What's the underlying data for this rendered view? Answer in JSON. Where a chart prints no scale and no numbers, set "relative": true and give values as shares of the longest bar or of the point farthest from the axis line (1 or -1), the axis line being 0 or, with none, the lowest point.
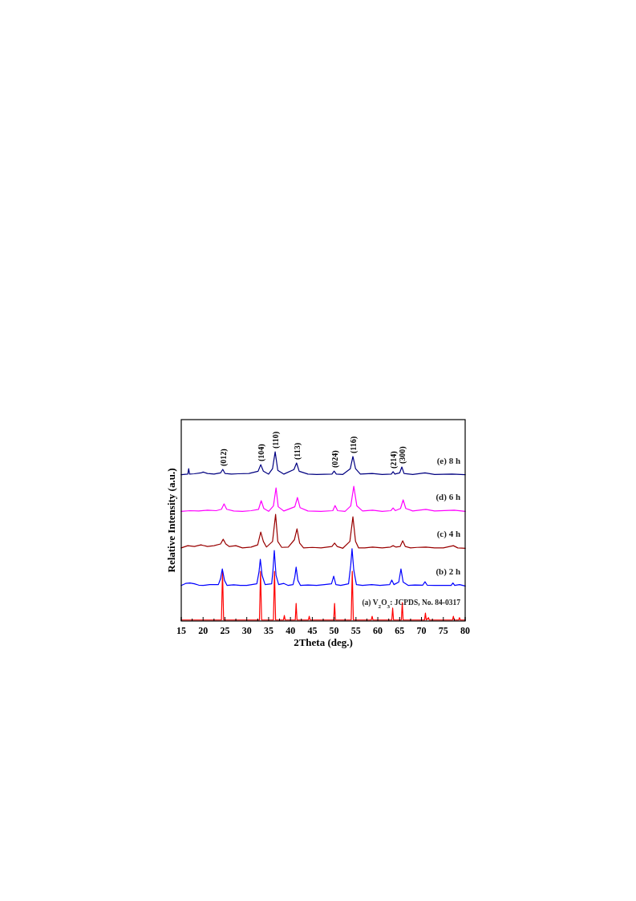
{
  "chart_data": {
    "type": "line",
    "relative": true,
    "xlabel": "2Theta (deg.)",
    "ylabel": "Relative Intensity (a.u.)",
    "xlim": [
      15,
      80
    ],
    "xticks": [
      15,
      {
        "value": 17.5,
        "label": null
      },
      20,
      {
        "value": 22.5,
        "label": null
      },
      25,
      {
        "value": 27.5,
        "label": null
      },
      30,
      {
        "value": 32.5,
        "label": null
      },
      35,
      {
        "value": 37.5,
        "label": null
      },
      40,
      {
        "value": 42.5,
        "label": null
      },
      45,
      {
        "value": 47.5,
        "label": null
      },
      50,
      {
        "value": 52.5,
        "label": null
      },
      55,
      {
        "value": 57.5,
        "label": null
      },
      60,
      {
        "value": 62.5,
        "label": null
      },
      65,
      {
        "value": 67.5,
        "label": null
      },
      70,
      {
        "value": 72.5,
        "label": null
      },
      75,
      {
        "value": 77.5,
        "label": null
      },
      80
    ],
    "marker": "none",
    "grid": false,
    "series": [
      {
        "name": "(a) V$_{2}$O$_{3}$: JCPDS, No. 84-0317",
        "color": "#ff0000",
        "x": [
          15,
          24.2,
          24.45,
          24.7,
          32.9,
          33.15,
          33.4,
          36.1,
          36.35,
          36.6,
          38.4,
          38.6,
          38.8,
          41.1,
          41.3,
          41.5,
          44.1,
          44.3,
          44.5,
          49.9,
          50.1,
          50.3,
          53.9,
          54.15,
          54.4,
          58.5,
          58.7,
          58.9,
          63.2,
          63.4,
          63.6,
          65.4,
          65.6,
          65.8,
          70.7,
          70.9,
          71.1,
          71.6,
          71.8,
          77.1,
          77.3,
          77.5,
          78.5,
          78.7,
          78.9,
          80
        ],
        "values": [
          0.005,
          0.005,
          0.294,
          0.005,
          0.005,
          0.294,
          0.005,
          0.005,
          0.294,
          0.005,
          0.005,
          0.033,
          0.005,
          0.005,
          0.104,
          0.005,
          0.005,
          0.028,
          0.005,
          0.005,
          0.104,
          0.005,
          0.005,
          0.294,
          0.005,
          0.005,
          0.028,
          0.005,
          0.005,
          0.076,
          0.005,
          0.005,
          0.109,
          0.005,
          0.005,
          0.047,
          0.005,
          0.02,
          0.005,
          0.005,
          0.028,
          0.005,
          0.005,
          0.02,
          0.005,
          0.005
        ]
      },
      {
        "name": "(b) 2 h",
        "color": "#0000ff",
        "x": [
          15,
          16,
          17,
          18,
          19,
          20,
          21.5,
          23.5,
          24.0,
          24.4,
          24.9,
          25.5,
          27,
          28.5,
          30,
          32.3,
          32.8,
          33.1,
          33.5,
          34.2,
          35.7,
          36.0,
          36.3,
          36.7,
          37.3,
          38.5,
          39.5,
          40.6,
          41.0,
          41.3,
          41.7,
          42.3,
          44,
          46,
          47.8,
          49.4,
          49.9,
          50.4,
          51.5,
          53.3,
          53.8,
          54.1,
          54.5,
          55.1,
          56.5,
          58.6,
          60.5,
          62.7,
          63.2,
          63.7,
          64.8,
          65.3,
          65.8,
          67,
          68.5,
          70.3,
          70.8,
          71.3,
          73,
          75,
          76.8,
          77.2,
          77.6,
          78.7,
          80
        ],
        "values": [
          0.21,
          0.222,
          0.225,
          0.22,
          0.212,
          0.21,
          0.215,
          0.215,
          0.25,
          0.308,
          0.24,
          0.21,
          0.214,
          0.21,
          0.21,
          0.22,
          0.29,
          0.365,
          0.27,
          0.215,
          0.22,
          0.3,
          0.417,
          0.27,
          0.215,
          0.222,
          0.21,
          0.215,
          0.26,
          0.318,
          0.24,
          0.21,
          0.213,
          0.21,
          0.215,
          0.22,
          0.265,
          0.215,
          0.21,
          0.22,
          0.33,
          0.427,
          0.3,
          0.215,
          0.21,
          0.215,
          0.21,
          0.215,
          0.242,
          0.215,
          0.23,
          0.308,
          0.23,
          0.21,
          0.213,
          0.212,
          0.232,
          0.212,
          0.21,
          0.21,
          0.21,
          0.225,
          0.21,
          0.215,
          0.207
        ]
      },
      {
        "name": "(c) 4 h",
        "color": "#990000",
        "x": [
          15,
          16.5,
          18,
          19.5,
          21,
          22.5,
          24.0,
          24.6,
          25.2,
          26,
          27.5,
          29,
          31,
          32.5,
          33.2,
          33.8,
          34.5,
          35.9,
          36.6,
          37.1,
          38,
          39.5,
          40.9,
          41.5,
          42.1,
          43,
          45,
          47,
          49.5,
          50.1,
          50.7,
          52,
          53.6,
          54.3,
          54.9,
          55.6,
          57,
          58.8,
          61,
          62.9,
          63.5,
          64.1,
          65.1,
          65.7,
          66.3,
          67.5,
          69,
          71,
          73,
          75,
          77.3,
          78.3,
          80
        ],
        "values": [
          0.432,
          0.445,
          0.44,
          0.45,
          0.44,
          0.445,
          0.455,
          0.483,
          0.455,
          0.44,
          0.445,
          0.432,
          0.437,
          0.45,
          0.526,
          0.47,
          0.437,
          0.47,
          0.63,
          0.47,
          0.435,
          0.437,
          0.48,
          0.545,
          0.46,
          0.432,
          0.435,
          0.432,
          0.44,
          0.46,
          0.44,
          0.43,
          0.47,
          0.616,
          0.47,
          0.432,
          0.432,
          0.437,
          0.432,
          0.437,
          0.445,
          0.437,
          0.44,
          0.474,
          0.44,
          0.432,
          0.435,
          0.437,
          0.432,
          0.432,
          0.445,
          0.432,
          0.43
        ]
      },
      {
        "name": "(d) 6 h",
        "color": "#ff00ff",
        "x": [
          15,
          17,
          19,
          21,
          23,
          24.2,
          24.8,
          25.4,
          27,
          29,
          31,
          32.7,
          33.3,
          33.9,
          35,
          36.1,
          36.7,
          37.2,
          38.5,
          41.0,
          41.6,
          42.2,
          44,
          47,
          49.7,
          50.2,
          50.8,
          52.5,
          53.8,
          54.5,
          55.2,
          56.5,
          58.8,
          61,
          63,
          63.5,
          64,
          65.2,
          65.8,
          66.4,
          68,
          71,
          73,
          77.5,
          80
        ],
        "values": [
          0.648,
          0.652,
          0.65,
          0.655,
          0.652,
          0.66,
          0.692,
          0.66,
          0.65,
          0.648,
          0.652,
          0.66,
          0.711,
          0.665,
          0.648,
          0.68,
          0.787,
          0.675,
          0.65,
          0.675,
          0.73,
          0.67,
          0.65,
          0.648,
          0.652,
          0.682,
          0.652,
          0.648,
          0.68,
          0.796,
          0.68,
          0.65,
          0.655,
          0.648,
          0.652,
          0.668,
          0.652,
          0.665,
          0.716,
          0.665,
          0.65,
          0.66,
          0.65,
          0.655,
          0.648
        ]
      },
      {
        "name": "(e) 8 h",
        "color": "#000080",
        "x": [
          15,
          16.5,
          16.7,
          16.9,
          18,
          19.5,
          20,
          21,
          22.5,
          24.0,
          24.5,
          25.0,
          26.5,
          28,
          30.5,
          32.6,
          33.2,
          33.8,
          35,
          35.9,
          36.5,
          37.1,
          38.5,
          40.8,
          41.4,
          42.0,
          44,
          46,
          49.5,
          50,
          50.5,
          52,
          53.7,
          54.3,
          54.9,
          56,
          58.7,
          61,
          63.1,
          63.5,
          63.9,
          65.0,
          65.5,
          66.0,
          68,
          70.8,
          73,
          77,
          80
        ],
        "values": [
          0.865,
          0.868,
          0.9,
          0.868,
          0.87,
          0.875,
          0.88,
          0.872,
          0.868,
          0.875,
          0.896,
          0.872,
          0.868,
          0.87,
          0.872,
          0.885,
          0.924,
          0.885,
          0.868,
          0.9,
          1.0,
          0.89,
          0.868,
          0.895,
          0.934,
          0.885,
          0.868,
          0.866,
          0.868,
          0.886,
          0.868,
          0.866,
          0.9,
          0.972,
          0.9,
          0.868,
          0.872,
          0.866,
          0.868,
          0.882,
          0.868,
          0.875,
          0.91,
          0.872,
          0.866,
          0.875,
          0.866,
          0.868,
          0.865
        ]
      }
    ],
    "annotations": [
      {
        "text": "(012)",
        "x": 24.5,
        "y": 0.896
      },
      {
        "text": "(104)",
        "x": 33.2,
        "y": 0.924
      },
      {
        "text": "(110)",
        "x": 36.5,
        "y": 1.0
      },
      {
        "text": "(113)",
        "x": 41.4,
        "y": 0.934
      },
      {
        "text": "(024)",
        "x": 50,
        "y": 0.886
      },
      {
        "text": "(116)",
        "x": 54.3,
        "y": 0.972
      },
      {
        "text": "(214)",
        "x": 63.5,
        "y": 0.882
      },
      {
        "text": "(300)",
        "x": 65.5,
        "y": 0.91
      }
    ]
  }
}
